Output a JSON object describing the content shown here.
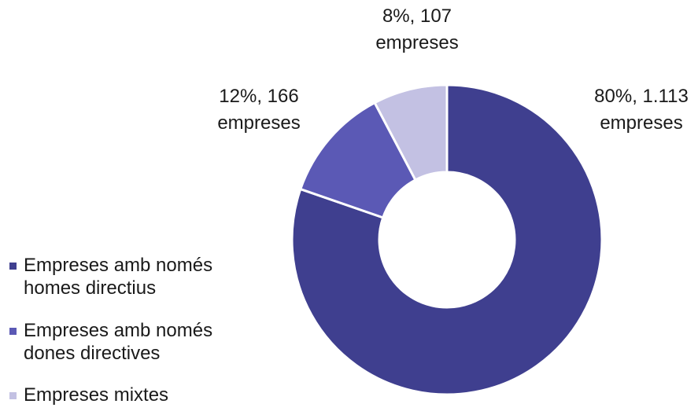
{
  "chart_data": {
    "type": "pie",
    "donut": true,
    "slices": [
      {
        "legend": "Empreses amb només homes directius",
        "percent_label": "80%, 1.113",
        "unit_label": "empreses",
        "value": 1113,
        "percent": 80,
        "color": "#3f3f8f"
      },
      {
        "legend": "Empreses amb només dones directives",
        "percent_label": "12%, 166",
        "unit_label": "empreses",
        "value": 166,
        "percent": 12,
        "color": "#5b59b5"
      },
      {
        "legend": "Empreses mixtes",
        "percent_label": "8%, 107",
        "unit_label": "empreses",
        "value": 107,
        "percent": 8,
        "color": "#c3c1e3"
      }
    ],
    "legend_position": "left"
  }
}
